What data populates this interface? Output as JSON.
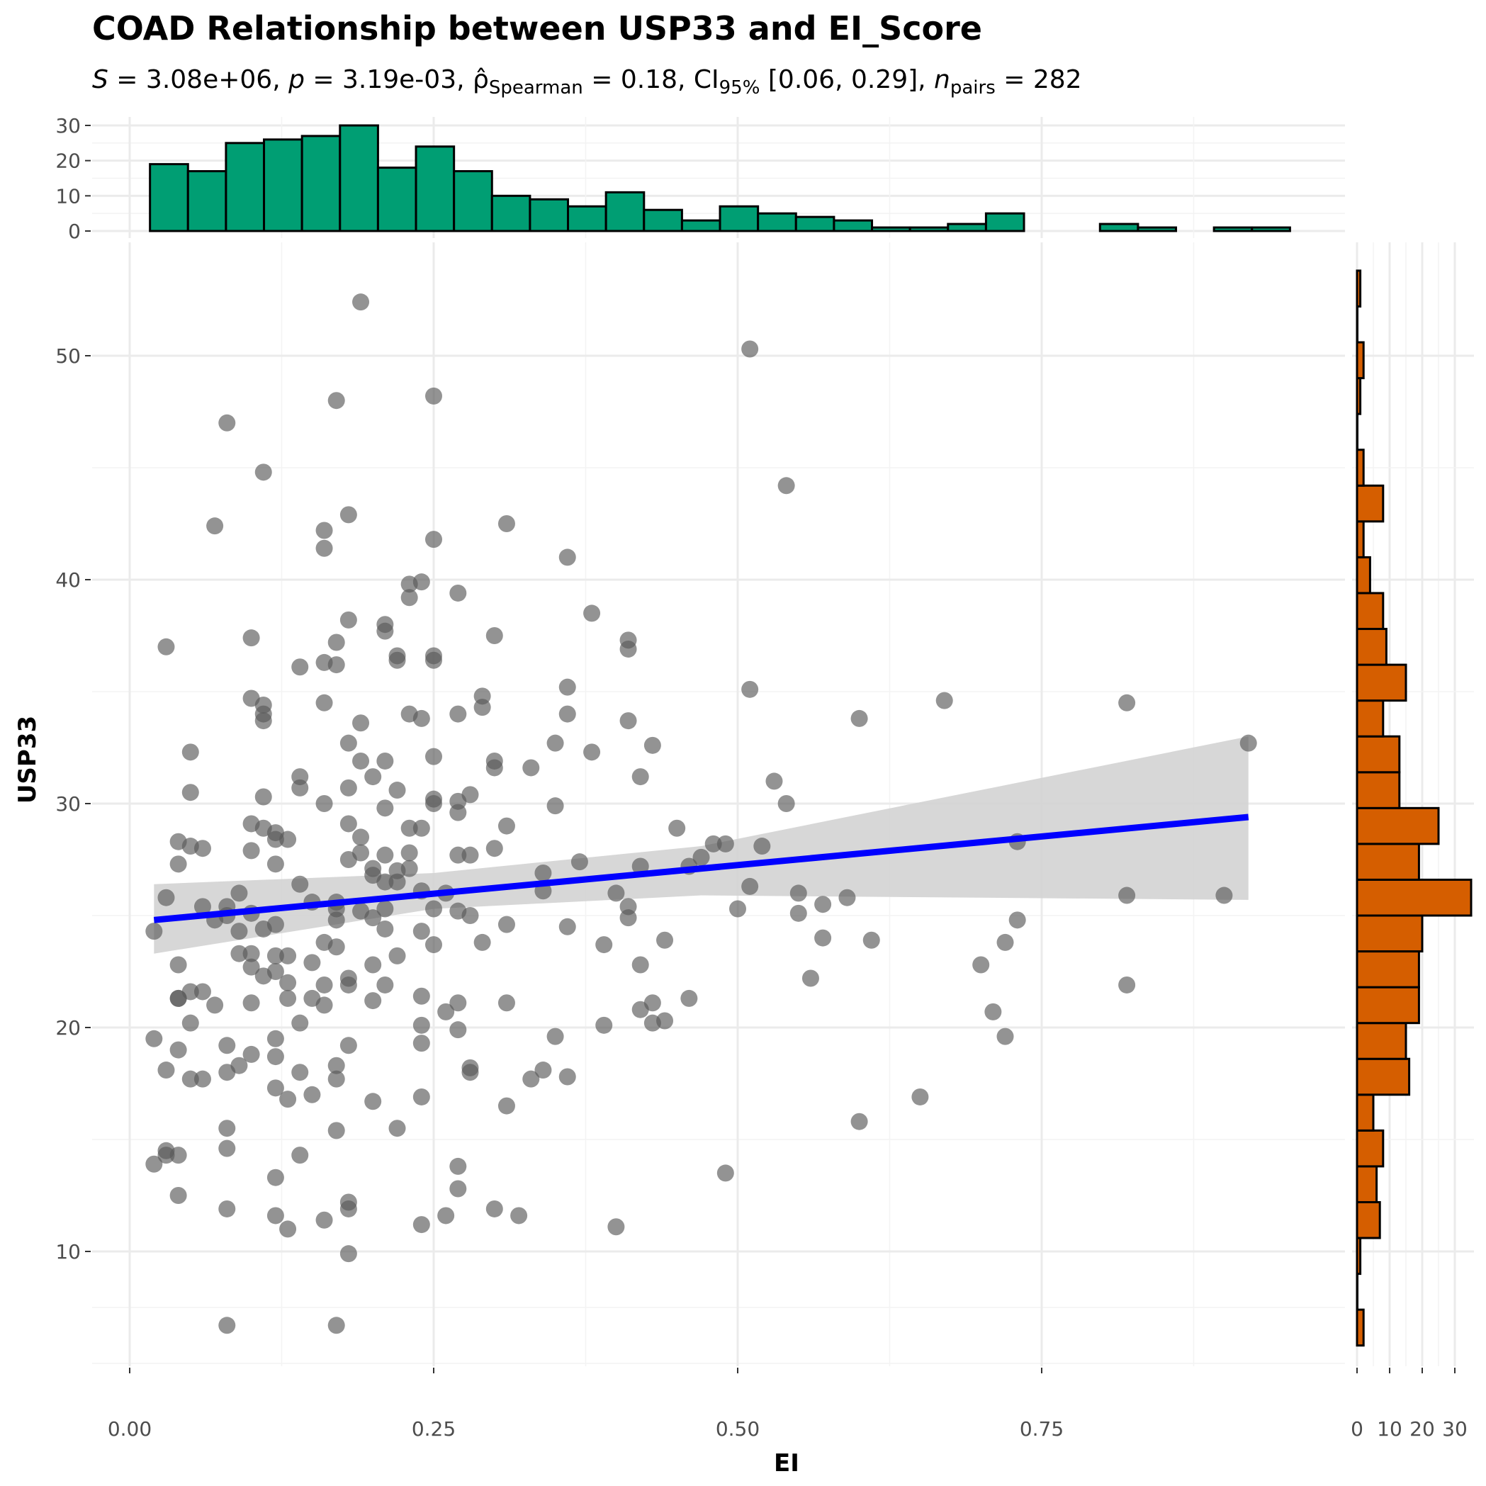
{
  "colors": {
    "grid_major": "#ebebeb",
    "grid_minor": "#f3f3f3",
    "points": "#595959",
    "fit_line": "#0000ff",
    "ci_band": "#d3d3d3",
    "top_hist_fill": "#009e73",
    "right_hist_fill": "#d55e00",
    "bar_outline": "#000000"
  },
  "chart_data": {
    "type": "scatter",
    "title": "COAD Relationship between USP33 and EI_Score",
    "subtitle": "S = 3.08e+06, p = 3.19e-03, ρ̂Spearman = 0.18, CI95% [0.06, 0.29], npairs = 282",
    "subtitle_parts": {
      "s_label": "S",
      "s_value": " = 3.08e+06, ",
      "p_label": "p",
      "p_value": " = 3.19e-03, ",
      "rho_symbol": "ρ̂",
      "rho_sub": "Spearman",
      "rho_value": " = 0.18, CI",
      "ci_sub": "95%",
      "ci_value": " [0.06, 0.29], ",
      "n_label": "n",
      "n_sub": "pairs",
      "n_value": " = 282"
    },
    "xlabel": "EI",
    "ylabel": "USP33",
    "xlim": [
      -0.03,
      0.96
    ],
    "ylim": [
      5,
      54
    ],
    "x_ticks": [
      0.0,
      0.25,
      0.5,
      0.75
    ],
    "x_tick_labels": [
      "0.00",
      "0.25",
      "0.50",
      "0.75"
    ],
    "y_ticks": [
      10,
      20,
      30,
      40,
      50
    ],
    "y_tick_labels": [
      "10",
      "20",
      "30",
      "40",
      "50"
    ],
    "grid": true,
    "fit": {
      "method": "linear",
      "x": [
        0.02,
        0.92
      ],
      "y": [
        24.8,
        29.4
      ],
      "ci_band": [
        {
          "x": 0.02,
          "lo": 23.3,
          "hi": 26.4
        },
        {
          "x": 0.25,
          "lo": 25.3,
          "hi": 26.9
        },
        {
          "x": 0.47,
          "lo": 25.9,
          "hi": 28.1
        },
        {
          "x": 0.92,
          "lo": 25.7,
          "hi": 33.0
        }
      ]
    },
    "points": [
      [
        0.02,
        24.3
      ],
      [
        0.02,
        19.5
      ],
      [
        0.02,
        13.9
      ],
      [
        0.03,
        18.1
      ],
      [
        0.03,
        14.5
      ],
      [
        0.03,
        14.3
      ],
      [
        0.03,
        37.0
      ],
      [
        0.03,
        25.8
      ],
      [
        0.04,
        21.3
      ],
      [
        0.04,
        21.3
      ],
      [
        0.04,
        14.3
      ],
      [
        0.04,
        22.8
      ],
      [
        0.04,
        28.3
      ],
      [
        0.04,
        19.0
      ],
      [
        0.04,
        12.5
      ],
      [
        0.04,
        27.3
      ],
      [
        0.05,
        21.6
      ],
      [
        0.05,
        17.7
      ],
      [
        0.05,
        30.5
      ],
      [
        0.05,
        32.3
      ],
      [
        0.05,
        20.2
      ],
      [
        0.05,
        28.1
      ],
      [
        0.06,
        28.0
      ],
      [
        0.06,
        25.4
      ],
      [
        0.06,
        21.6
      ],
      [
        0.06,
        17.7
      ],
      [
        0.07,
        21.0
      ],
      [
        0.07,
        42.4
      ],
      [
        0.07,
        24.8
      ],
      [
        0.08,
        47.0
      ],
      [
        0.08,
        25.0
      ],
      [
        0.08,
        25.4
      ],
      [
        0.08,
        19.2
      ],
      [
        0.08,
        18.0
      ],
      [
        0.08,
        15.5
      ],
      [
        0.08,
        14.6
      ],
      [
        0.08,
        11.9
      ],
      [
        0.08,
        6.7
      ],
      [
        0.09,
        24.3
      ],
      [
        0.09,
        23.3
      ],
      [
        0.09,
        18.3
      ],
      [
        0.09,
        26.0
      ],
      [
        0.1,
        29.1
      ],
      [
        0.1,
        27.9
      ],
      [
        0.1,
        37.4
      ],
      [
        0.1,
        22.7
      ],
      [
        0.1,
        25.1
      ],
      [
        0.1,
        34.7
      ],
      [
        0.1,
        21.1
      ],
      [
        0.1,
        23.3
      ],
      [
        0.1,
        18.8
      ],
      [
        0.11,
        34.0
      ],
      [
        0.11,
        33.7
      ],
      [
        0.11,
        34.4
      ],
      [
        0.11,
        44.8
      ],
      [
        0.11,
        22.3
      ],
      [
        0.11,
        30.3
      ],
      [
        0.11,
        28.9
      ],
      [
        0.11,
        24.4
      ],
      [
        0.12,
        28.4
      ],
      [
        0.12,
        27.3
      ],
      [
        0.12,
        23.2
      ],
      [
        0.12,
        18.7
      ],
      [
        0.12,
        11.6
      ],
      [
        0.12,
        28.7
      ],
      [
        0.12,
        24.6
      ],
      [
        0.12,
        17.3
      ],
      [
        0.12,
        22.5
      ],
      [
        0.12,
        19.5
      ],
      [
        0.12,
        13.3
      ],
      [
        0.13,
        28.4
      ],
      [
        0.13,
        22.0
      ],
      [
        0.13,
        21.3
      ],
      [
        0.13,
        11.0
      ],
      [
        0.13,
        23.2
      ],
      [
        0.13,
        16.8
      ],
      [
        0.14,
        31.2
      ],
      [
        0.14,
        36.1
      ],
      [
        0.14,
        30.7
      ],
      [
        0.14,
        14.3
      ],
      [
        0.14,
        26.4
      ],
      [
        0.14,
        18.0
      ],
      [
        0.14,
        20.2
      ],
      [
        0.15,
        25.6
      ],
      [
        0.15,
        22.9
      ],
      [
        0.15,
        17.0
      ],
      [
        0.15,
        21.3
      ],
      [
        0.16,
        34.5
      ],
      [
        0.16,
        36.3
      ],
      [
        0.16,
        41.4
      ],
      [
        0.16,
        23.8
      ],
      [
        0.16,
        21.9
      ],
      [
        0.16,
        11.4
      ],
      [
        0.16,
        21.0
      ],
      [
        0.16,
        30.0
      ],
      [
        0.16,
        42.2
      ],
      [
        0.17,
        25.6
      ],
      [
        0.17,
        24.8
      ],
      [
        0.17,
        17.7
      ],
      [
        0.17,
        18.3
      ],
      [
        0.17,
        36.2
      ],
      [
        0.17,
        37.2
      ],
      [
        0.17,
        25.3
      ],
      [
        0.17,
        15.4
      ],
      [
        0.17,
        6.7
      ],
      [
        0.17,
        48.0
      ],
      [
        0.17,
        23.6
      ],
      [
        0.18,
        30.7
      ],
      [
        0.18,
        21.9
      ],
      [
        0.18,
        19.2
      ],
      [
        0.18,
        42.9
      ],
      [
        0.18,
        27.5
      ],
      [
        0.18,
        12.2
      ],
      [
        0.18,
        32.7
      ],
      [
        0.18,
        9.9
      ],
      [
        0.18,
        11.9
      ],
      [
        0.18,
        29.1
      ],
      [
        0.18,
        38.2
      ],
      [
        0.18,
        22.2
      ],
      [
        0.19,
        52.4
      ],
      [
        0.19,
        28.5
      ],
      [
        0.19,
        25.2
      ],
      [
        0.19,
        27.8
      ],
      [
        0.19,
        33.6
      ],
      [
        0.19,
        31.9
      ],
      [
        0.2,
        21.2
      ],
      [
        0.2,
        24.9
      ],
      [
        0.2,
        27.1
      ],
      [
        0.2,
        26.8
      ],
      [
        0.2,
        22.8
      ],
      [
        0.2,
        31.2
      ],
      [
        0.2,
        16.7
      ],
      [
        0.21,
        24.4
      ],
      [
        0.21,
        25.3
      ],
      [
        0.21,
        38.0
      ],
      [
        0.21,
        37.7
      ],
      [
        0.21,
        31.9
      ],
      [
        0.21,
        27.7
      ],
      [
        0.21,
        29.8
      ],
      [
        0.21,
        21.9
      ],
      [
        0.21,
        26.5
      ],
      [
        0.22,
        26.5
      ],
      [
        0.22,
        36.4
      ],
      [
        0.22,
        36.6
      ],
      [
        0.22,
        30.6
      ],
      [
        0.22,
        23.2
      ],
      [
        0.22,
        27.0
      ],
      [
        0.22,
        15.5
      ],
      [
        0.23,
        27.8
      ],
      [
        0.23,
        34.0
      ],
      [
        0.23,
        28.9
      ],
      [
        0.23,
        39.8
      ],
      [
        0.23,
        39.2
      ],
      [
        0.23,
        27.1
      ],
      [
        0.24,
        16.9
      ],
      [
        0.24,
        11.2
      ],
      [
        0.24,
        39.9
      ],
      [
        0.24,
        33.8
      ],
      [
        0.24,
        28.9
      ],
      [
        0.24,
        26.1
      ],
      [
        0.24,
        21.4
      ],
      [
        0.24,
        24.3
      ],
      [
        0.24,
        19.3
      ],
      [
        0.24,
        20.1
      ],
      [
        0.25,
        32.1
      ],
      [
        0.25,
        36.4
      ],
      [
        0.25,
        36.6
      ],
      [
        0.25,
        30.2
      ],
      [
        0.25,
        41.8
      ],
      [
        0.25,
        30.0
      ],
      [
        0.25,
        25.3
      ],
      [
        0.25,
        23.7
      ],
      [
        0.25,
        48.2
      ],
      [
        0.26,
        26.0
      ],
      [
        0.26,
        11.6
      ],
      [
        0.26,
        20.7
      ],
      [
        0.27,
        25.2
      ],
      [
        0.27,
        34.0
      ],
      [
        0.27,
        39.4
      ],
      [
        0.27,
        30.1
      ],
      [
        0.27,
        13.8
      ],
      [
        0.27,
        19.9
      ],
      [
        0.27,
        12.8
      ],
      [
        0.27,
        29.6
      ],
      [
        0.27,
        21.1
      ],
      [
        0.27,
        27.7
      ],
      [
        0.28,
        30.4
      ],
      [
        0.28,
        27.7
      ],
      [
        0.28,
        25.0
      ],
      [
        0.28,
        18.0
      ],
      [
        0.28,
        18.2
      ],
      [
        0.29,
        23.8
      ],
      [
        0.29,
        34.3
      ],
      [
        0.29,
        34.8
      ],
      [
        0.3,
        37.5
      ],
      [
        0.3,
        31.9
      ],
      [
        0.3,
        31.6
      ],
      [
        0.3,
        28.0
      ],
      [
        0.3,
        11.9
      ],
      [
        0.31,
        24.6
      ],
      [
        0.31,
        42.5
      ],
      [
        0.31,
        29.0
      ],
      [
        0.31,
        21.1
      ],
      [
        0.31,
        16.5
      ],
      [
        0.32,
        11.6
      ],
      [
        0.33,
        31.6
      ],
      [
        0.33,
        17.7
      ],
      [
        0.34,
        26.1
      ],
      [
        0.34,
        18.1
      ],
      [
        0.34,
        26.9
      ],
      [
        0.35,
        29.9
      ],
      [
        0.35,
        32.7
      ],
      [
        0.35,
        19.6
      ],
      [
        0.36,
        41.0
      ],
      [
        0.36,
        24.5
      ],
      [
        0.36,
        17.8
      ],
      [
        0.36,
        35.2
      ],
      [
        0.36,
        34.0
      ],
      [
        0.37,
        27.4
      ],
      [
        0.38,
        38.5
      ],
      [
        0.38,
        32.3
      ],
      [
        0.39,
        23.7
      ],
      [
        0.39,
        20.1
      ],
      [
        0.4,
        26.0
      ],
      [
        0.4,
        11.1
      ],
      [
        0.41,
        25.4
      ],
      [
        0.41,
        33.7
      ],
      [
        0.41,
        37.3
      ],
      [
        0.41,
        36.9
      ],
      [
        0.41,
        24.9
      ],
      [
        0.42,
        31.2
      ],
      [
        0.42,
        27.2
      ],
      [
        0.42,
        22.8
      ],
      [
        0.42,
        20.8
      ],
      [
        0.43,
        20.2
      ],
      [
        0.43,
        32.6
      ],
      [
        0.43,
        21.1
      ],
      [
        0.44,
        20.3
      ],
      [
        0.44,
        23.9
      ],
      [
        0.45,
        28.9
      ],
      [
        0.46,
        27.2
      ],
      [
        0.46,
        21.3
      ],
      [
        0.47,
        27.6
      ],
      [
        0.48,
        28.2
      ],
      [
        0.49,
        13.5
      ],
      [
        0.49,
        28.2
      ],
      [
        0.5,
        25.3
      ],
      [
        0.51,
        50.3
      ],
      [
        0.51,
        35.1
      ],
      [
        0.51,
        26.3
      ],
      [
        0.52,
        28.1
      ],
      [
        0.53,
        31.0
      ],
      [
        0.54,
        44.2
      ],
      [
        0.54,
        30.0
      ],
      [
        0.55,
        26.0
      ],
      [
        0.55,
        25.1
      ],
      [
        0.56,
        22.2
      ],
      [
        0.57,
        24.0
      ],
      [
        0.57,
        25.5
      ],
      [
        0.59,
        25.8
      ],
      [
        0.6,
        15.8
      ],
      [
        0.6,
        33.8
      ],
      [
        0.61,
        23.9
      ],
      [
        0.65,
        16.9
      ],
      [
        0.67,
        34.6
      ],
      [
        0.7,
        22.8
      ],
      [
        0.71,
        20.7
      ],
      [
        0.72,
        19.6
      ],
      [
        0.72,
        23.8
      ],
      [
        0.73,
        24.8
      ],
      [
        0.73,
        28.3
      ],
      [
        0.82,
        25.9
      ],
      [
        0.82,
        21.9
      ],
      [
        0.82,
        34.5
      ],
      [
        0.9,
        25.9
      ],
      [
        0.92,
        32.7
      ]
    ],
    "top_hist": {
      "xlabel": "",
      "ylim": [
        0,
        30
      ],
      "y_ticks": [
        0,
        10,
        20,
        30
      ],
      "y_tick_labels": [
        "0",
        "10",
        "20",
        "30"
      ],
      "bin_start": 0.0167,
      "bin_width": 0.03125,
      "counts": [
        19,
        17,
        25,
        26,
        27,
        30,
        18,
        24,
        17,
        10,
        9,
        7,
        11,
        6,
        3,
        7,
        5,
        4,
        3,
        1,
        1,
        2,
        5,
        0,
        0,
        2,
        1,
        0,
        1,
        1
      ]
    },
    "right_hist": {
      "xlim": [
        0,
        34
      ],
      "x_ticks": [
        0,
        10,
        20,
        30
      ],
      "x_tick_labels": [
        "0",
        "10",
        "20",
        "30"
      ],
      "bins": [
        {
          "y0": 5.8,
          "y1": 7.4,
          "count": 2
        },
        {
          "y0": 7.4,
          "y1": 9.0,
          "count": 0
        },
        {
          "y0": 9.0,
          "y1": 10.6,
          "count": 1
        },
        {
          "y0": 10.6,
          "y1": 12.2,
          "count": 7
        },
        {
          "y0": 12.2,
          "y1": 13.8,
          "count": 6
        },
        {
          "y0": 13.8,
          "y1": 15.4,
          "count": 8
        },
        {
          "y0": 15.4,
          "y1": 17.0,
          "count": 5
        },
        {
          "y0": 17.0,
          "y1": 18.6,
          "count": 16
        },
        {
          "y0": 18.6,
          "y1": 20.2,
          "count": 15
        },
        {
          "y0": 20.2,
          "y1": 21.8,
          "count": 19
        },
        {
          "y0": 21.8,
          "y1": 23.4,
          "count": 19
        },
        {
          "y0": 23.4,
          "y1": 25.0,
          "count": 20
        },
        {
          "y0": 25.0,
          "y1": 26.6,
          "count": 35
        },
        {
          "y0": 26.6,
          "y1": 28.2,
          "count": 19
        },
        {
          "y0": 28.2,
          "y1": 29.8,
          "count": 25
        },
        {
          "y0": 29.8,
          "y1": 31.4,
          "count": 13
        },
        {
          "y0": 31.4,
          "y1": 33.0,
          "count": 13
        },
        {
          "y0": 33.0,
          "y1": 34.6,
          "count": 8
        },
        {
          "y0": 34.6,
          "y1": 36.2,
          "count": 15
        },
        {
          "y0": 36.2,
          "y1": 37.8,
          "count": 9
        },
        {
          "y0": 37.8,
          "y1": 39.4,
          "count": 8
        },
        {
          "y0": 39.4,
          "y1": 41.0,
          "count": 4
        },
        {
          "y0": 41.0,
          "y1": 42.6,
          "count": 2
        },
        {
          "y0": 42.6,
          "y1": 44.2,
          "count": 8
        },
        {
          "y0": 44.2,
          "y1": 45.8,
          "count": 2
        },
        {
          "y0": 45.8,
          "y1": 47.4,
          "count": 0
        },
        {
          "y0": 47.4,
          "y1": 49.0,
          "count": 1
        },
        {
          "y0": 49.0,
          "y1": 50.6,
          "count": 2
        },
        {
          "y0": 50.6,
          "y1": 52.2,
          "count": 0
        },
        {
          "y0": 52.2,
          "y1": 53.8,
          "count": 1
        }
      ]
    }
  }
}
